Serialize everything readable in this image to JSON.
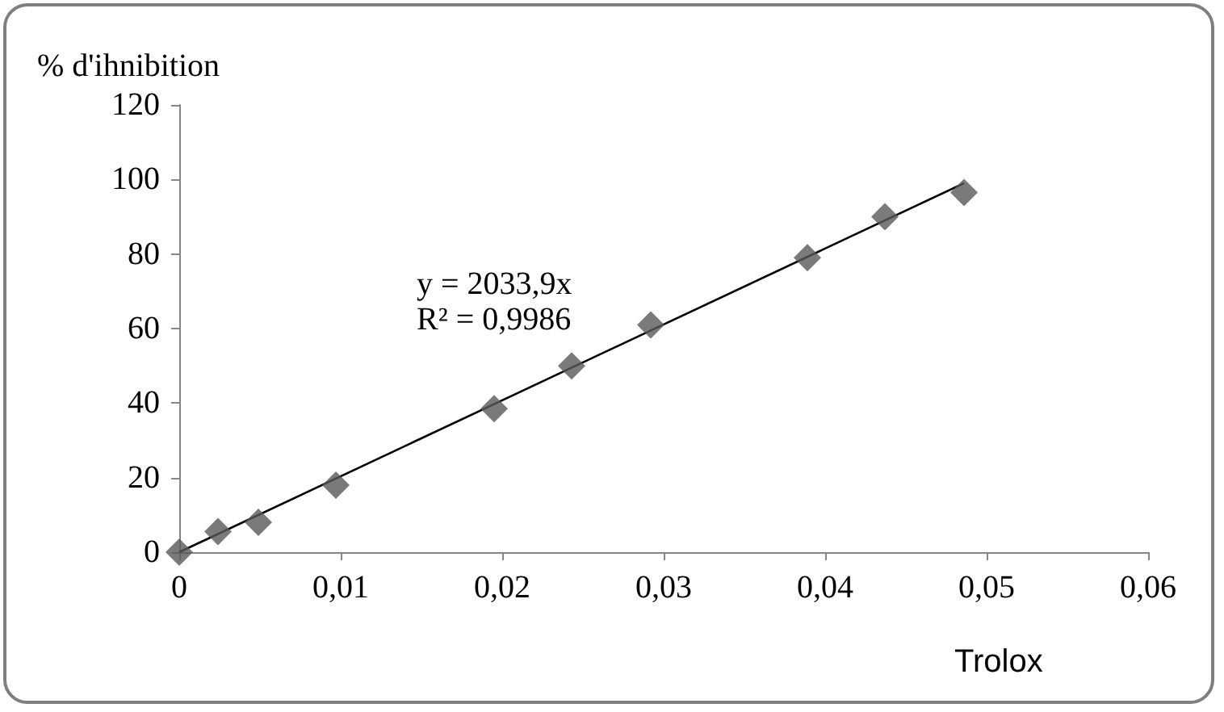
{
  "chart_data": {
    "type": "scatter",
    "ylabel": "% d'ihnibition",
    "xlabel": "Trolox",
    "x": [
      0,
      0.0024,
      0.0049,
      0.0097,
      0.0195,
      0.0243,
      0.0292,
      0.0389,
      0.0437,
      0.0486
    ],
    "series": [
      {
        "color": "#595959",
        "marker": "diamond",
        "values": [
          0,
          5.5,
          8,
          18,
          38.5,
          50,
          61,
          79,
          90,
          96.5
        ]
      },
      {
        "type": "line",
        "color": "#000000",
        "marker": "none",
        "x": [
          0,
          0.0486
        ],
        "values": [
          0,
          99
        ]
      }
    ],
    "annotations": [
      "y = 2033,9x",
      "R² = 0,9986"
    ],
    "xlim": [
      0,
      0.06
    ],
    "xticks": [
      0,
      {
        "value": 0.01,
        "label": "0,01"
      },
      {
        "value": 0.02,
        "label": "0,02"
      },
      {
        "value": 0.03,
        "label": "0,03"
      },
      {
        "value": 0.04,
        "label": "0,04"
      },
      {
        "value": 0.05,
        "label": "0,05"
      },
      {
        "value": 0.06,
        "label": "0,06"
      }
    ],
    "ylim": [
      0,
      120
    ],
    "yticks": [
      0,
      20,
      40,
      60,
      80,
      100,
      120
    ],
    "grid": false
  }
}
